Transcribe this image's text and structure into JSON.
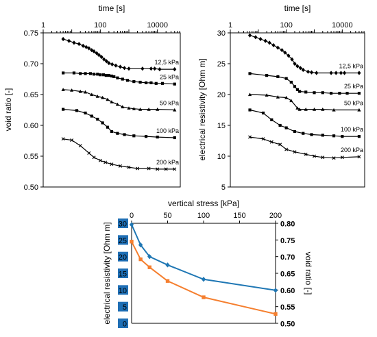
{
  "colors": {
    "line_black": "#000000",
    "blue": "#1f77b4",
    "orange": "#f57f2f",
    "axis_orange": "#ff4500",
    "tick_box_blue": "#1f6fb5"
  },
  "chart_data": [
    {
      "type": "line",
      "xlabel": "time [s]",
      "ylabel": "void ratio [-]",
      "xscale": "log",
      "xticks": [
        "1",
        "100",
        "10000"
      ],
      "yticks": [
        "0.50",
        "0.55",
        "0.60",
        "0.65",
        "0.70",
        "0.75"
      ],
      "ylim": [
        0.5,
        0.75
      ],
      "series": [
        {
          "name": "12,5 kPa",
          "marker": "diamond",
          "x": [
            5,
            8,
            12,
            18,
            25,
            32,
            40,
            50,
            60,
            75,
            90,
            110,
            135,
            165,
            200,
            260,
            350,
            500,
            700,
            1000,
            3000,
            6000,
            8000,
            12000,
            40000
          ],
          "y": [
            0.74,
            0.737,
            0.734,
            0.732,
            0.729,
            0.727,
            0.725,
            0.722,
            0.72,
            0.717,
            0.714,
            0.711,
            0.707,
            0.704,
            0.701,
            0.699,
            0.697,
            0.695,
            0.693,
            0.692,
            0.692,
            0.692,
            0.692,
            0.691,
            0.691
          ]
        },
        {
          "name": "25 kPa",
          "marker": "square",
          "x": [
            5,
            12,
            20,
            30,
            45,
            60,
            80,
            100,
            130,
            160,
            200,
            250,
            300,
            400,
            600,
            900,
            1500,
            2500,
            4000,
            6000,
            9000,
            15000,
            40000
          ],
          "y": [
            0.685,
            0.685,
            0.684,
            0.684,
            0.684,
            0.683,
            0.683,
            0.682,
            0.682,
            0.681,
            0.681,
            0.68,
            0.679,
            0.677,
            0.675,
            0.673,
            0.671,
            0.67,
            0.669,
            0.669,
            0.668,
            0.668,
            0.667
          ]
        },
        {
          "name": "50 kPa",
          "marker": "triangle",
          "x": [
            5,
            10,
            20,
            30,
            50,
            80,
            120,
            180,
            250,
            400,
            600,
            1000,
            1500,
            2500,
            5000,
            10000,
            40000
          ],
          "y": [
            0.658,
            0.657,
            0.655,
            0.654,
            0.65,
            0.647,
            0.645,
            0.642,
            0.638,
            0.634,
            0.63,
            0.628,
            0.627,
            0.626,
            0.626,
            0.626,
            0.625
          ]
        },
        {
          "name": "100 kPa",
          "marker": "square",
          "x": [
            5,
            15,
            30,
            50,
            80,
            120,
            180,
            250,
            400,
            700,
            1500,
            4000,
            10000,
            40000
          ],
          "y": [
            0.626,
            0.624,
            0.62,
            0.615,
            0.61,
            0.604,
            0.597,
            0.59,
            0.587,
            0.585,
            0.583,
            0.582,
            0.581,
            0.58
          ]
        },
        {
          "name": "200 kPa",
          "marker": "x",
          "x": [
            5,
            10,
            20,
            40,
            60,
            100,
            150,
            250,
            500,
            1000,
            2000,
            5000,
            10000,
            20000,
            40000
          ],
          "y": [
            0.578,
            0.576,
            0.567,
            0.555,
            0.548,
            0.543,
            0.54,
            0.537,
            0.534,
            0.532,
            0.53,
            0.53,
            0.529,
            0.529,
            0.529
          ]
        }
      ]
    },
    {
      "type": "line",
      "xlabel": "time [s]",
      "ylabel": "electrical resistivity [Ohm m]",
      "xscale": "log",
      "xticks": [
        "1",
        "100",
        "10000"
      ],
      "yticks": [
        "5",
        "10",
        "15",
        "20",
        "25",
        "30"
      ],
      "ylim": [
        5,
        30
      ],
      "series": [
        {
          "name": "12,5 kPa",
          "marker": "diamond",
          "x": [
            5,
            8,
            12,
            18,
            25,
            35,
            50,
            70,
            90,
            120,
            160,
            200,
            250,
            320,
            400,
            600,
            800,
            1200,
            4000,
            6000,
            9000,
            12000,
            40000
          ],
          "y": [
            29.6,
            29.3,
            29.0,
            28.7,
            28.4,
            28.0,
            27.6,
            27.2,
            26.8,
            26.3,
            25.7,
            25.0,
            24.6,
            24.3,
            24.0,
            23.7,
            23.6,
            23.5,
            23.5,
            23.5,
            23.5,
            23.5,
            23.5
          ]
        },
        {
          "name": "25 kPa",
          "marker": "square",
          "x": [
            5,
            20,
            50,
            100,
            150,
            200,
            250,
            300,
            500,
            1000,
            2000,
            4000,
            8000,
            15000,
            40000
          ],
          "y": [
            23.4,
            23.1,
            22.9,
            22.6,
            22.0,
            21.3,
            20.8,
            20.5,
            20.4,
            20.3,
            20.3,
            20.2,
            20.2,
            20.2,
            20.2
          ]
        },
        {
          "name": "50 kPa",
          "marker": "triangle",
          "x": [
            5,
            20,
            50,
            100,
            150,
            250,
            300,
            500,
            1000,
            2000,
            5000,
            40000
          ],
          "y": [
            20.0,
            19.9,
            19.6,
            19.5,
            19.0,
            17.8,
            17.6,
            17.6,
            17.6,
            17.6,
            17.5,
            17.5
          ]
        },
        {
          "name": "100 kPa",
          "marker": "square",
          "x": [
            5,
            15,
            30,
            60,
            100,
            200,
            400,
            800,
            2000,
            5000,
            10000,
            40000
          ],
          "y": [
            17.5,
            17.0,
            15.9,
            15.0,
            14.6,
            14.0,
            13.7,
            13.5,
            13.4,
            13.3,
            13.2,
            13.2
          ]
        },
        {
          "name": "200 kPa",
          "marker": "x",
          "x": [
            5,
            15,
            30,
            60,
            100,
            200,
            500,
            1000,
            2000,
            5000,
            10000,
            40000
          ],
          "y": [
            13.1,
            12.8,
            12.3,
            11.9,
            11.1,
            10.7,
            10.3,
            10.0,
            9.8,
            9.7,
            9.8,
            9.9
          ]
        }
      ]
    },
    {
      "type": "line",
      "xlabel": "vertical stress [kPa]",
      "ylabel_left": "electrical resistivity [Ohm m]",
      "ylabel_right": "void ratio [-]",
      "xticks": [
        "0",
        "50",
        "100",
        "150",
        "200"
      ],
      "yticks_left": [
        "0",
        "5",
        "10",
        "15",
        "20",
        "25",
        "30"
      ],
      "yticks_right": [
        "0.50",
        "0.55",
        "0.60",
        "0.65",
        "0.70",
        "0.75",
        "0.80"
      ],
      "xlim": [
        0,
        200
      ],
      "ylim_left": [
        0,
        30
      ],
      "ylim_right": [
        0.5,
        0.8
      ],
      "series": [
        {
          "name": "electrical resistivity",
          "axis": "left",
          "color": "#1f77b4",
          "marker": "diamond",
          "x": [
            0,
            12.5,
            25,
            50,
            100,
            200
          ],
          "y": [
            29.6,
            23.5,
            20.0,
            17.5,
            13.2,
            9.9
          ]
        },
        {
          "name": "void ratio",
          "axis": "right",
          "color": "#f57f2f",
          "marker": "square",
          "x": [
            0,
            12.5,
            25,
            50,
            100,
            200
          ],
          "y": [
            0.745,
            0.692,
            0.668,
            0.627,
            0.578,
            0.528
          ]
        }
      ]
    }
  ]
}
